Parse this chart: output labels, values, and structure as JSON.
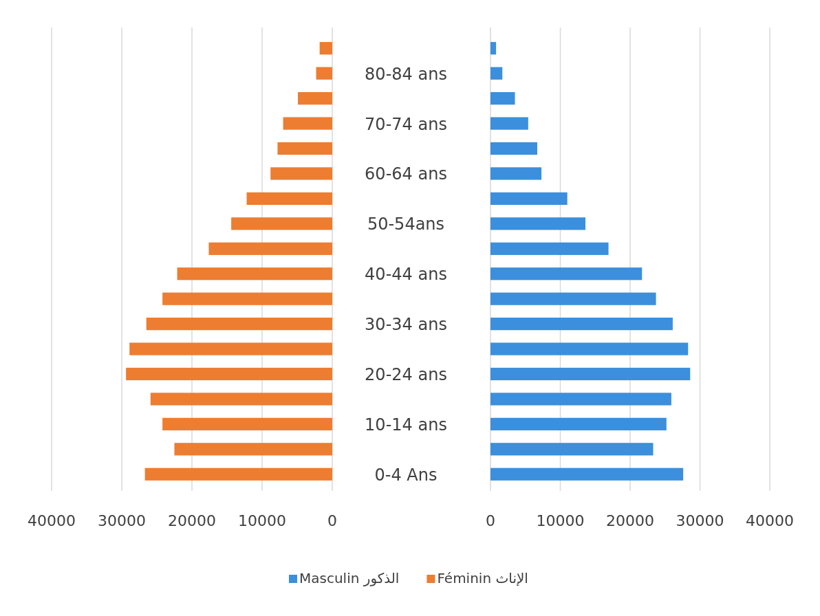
{
  "chart_data": [
    {
      "type": "bar",
      "orientation": "horizontal",
      "categories": [
        null,
        "80-84 ans",
        null,
        "70-74 ans",
        null,
        "60-64 ans",
        null,
        "50-54ans",
        null,
        "40-44 ans",
        null,
        "30-34 ans",
        null,
        "20-24 ans",
        null,
        "10-14 ans",
        null,
        "0-4 Ans"
      ],
      "series": [
        {
          "name": "Féminin الإناث",
          "color": "#ed7d31",
          "values": [
            1800,
            2300,
            4900,
            7000,
            7800,
            8800,
            12200,
            14400,
            17600,
            22100,
            24200,
            26500,
            28900,
            29400,
            25900,
            24200,
            22500,
            26700
          ]
        }
      ],
      "xlim": [
        40000,
        0
      ],
      "xticks": [
        40000,
        30000,
        20000,
        10000,
        0
      ],
      "grid": "x",
      "legend": "bottom"
    },
    {
      "type": "bar",
      "orientation": "horizontal",
      "categories": [
        null,
        null,
        null,
        null,
        null,
        null,
        null,
        null,
        null,
        null,
        null,
        null,
        null,
        null,
        null,
        null,
        null,
        null
      ],
      "series": [
        {
          "name": "Masculin الذكور",
          "color": "#3c8fdc",
          "values": [
            800,
            1700,
            3500,
            5400,
            6700,
            7300,
            11000,
            13600,
            16900,
            21700,
            23700,
            26100,
            28300,
            28600,
            25900,
            25200,
            23300,
            27600
          ]
        }
      ],
      "xlim": [
        0,
        40000
      ],
      "xticks": [
        0,
        10000,
        20000,
        30000,
        40000
      ],
      "grid": "x",
      "legend": "bottom"
    }
  ]
}
